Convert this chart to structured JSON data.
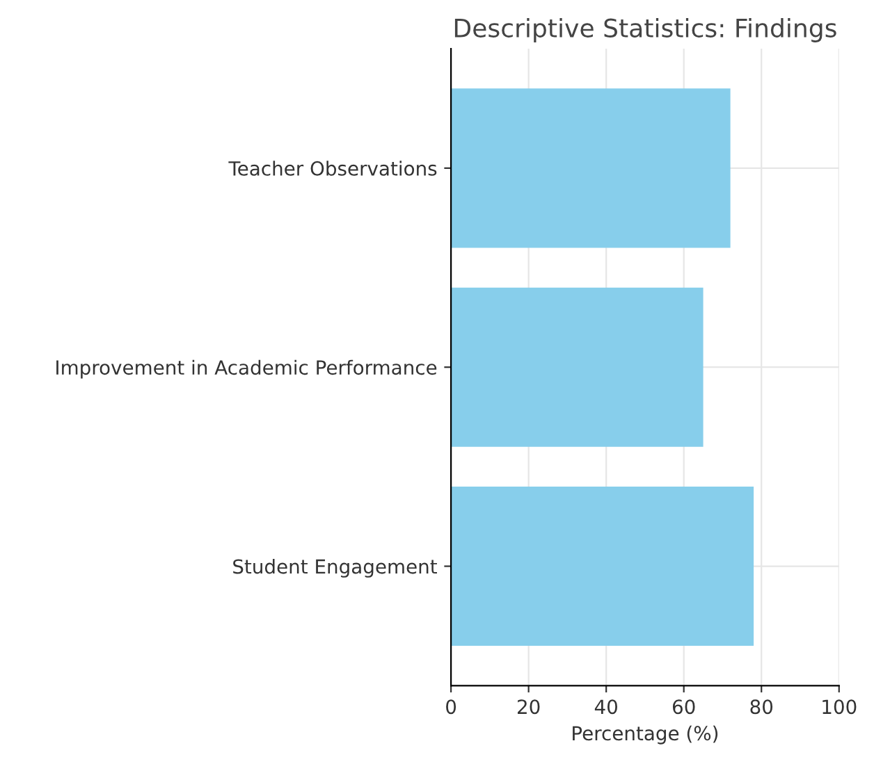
{
  "chart_data": {
    "type": "bar",
    "orientation": "horizontal",
    "title": "Descriptive Statistics: Findings",
    "xlabel": "Percentage (%)",
    "categories": [
      "Teacher Observations",
      "Improvement in Academic Performance",
      "Student Engagement"
    ],
    "values": [
      72,
      65,
      78
    ],
    "color": "#87ceeb",
    "xlim": [
      0,
      100
    ],
    "xticks": [
      0,
      20,
      40,
      60,
      80,
      100
    ],
    "grid": true
  }
}
